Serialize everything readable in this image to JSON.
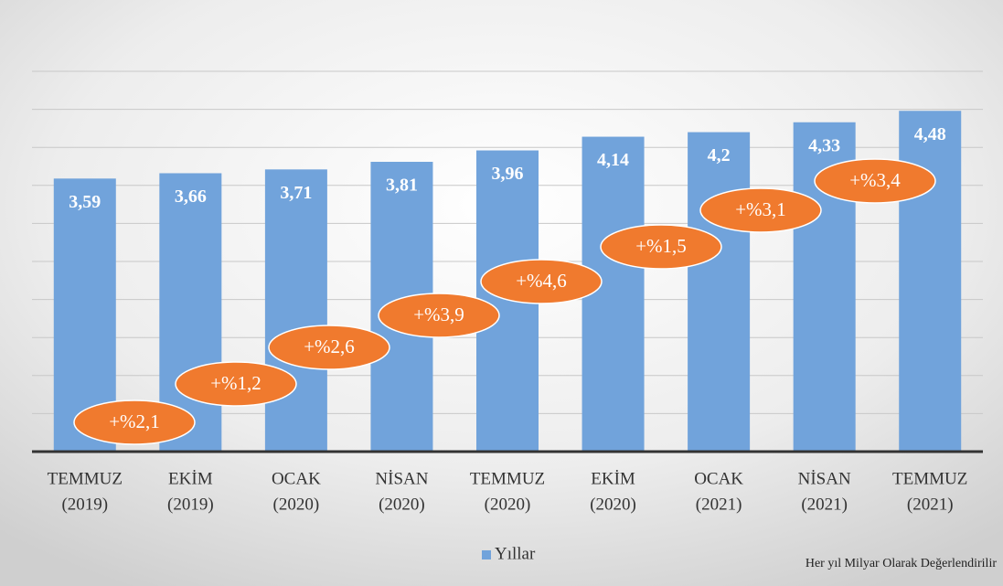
{
  "chart_data": {
    "type": "bar",
    "categories": [
      [
        "TEMMUZ",
        "(2019)"
      ],
      [
        "EKİM",
        "(2019)"
      ],
      [
        "OCAK",
        "(2020)"
      ],
      [
        "NİSAN",
        "(2020)"
      ],
      [
        "TEMMUZ",
        "(2020)"
      ],
      [
        "EKİM",
        "(2020)"
      ],
      [
        "OCAK",
        "(2021)"
      ],
      [
        "NİSAN",
        "(2021)"
      ],
      [
        "TEMMUZ",
        "(2021)"
      ]
    ],
    "series": [
      {
        "name": "Yıllar",
        "color": "#71a3db",
        "values": [
          3.59,
          3.66,
          3.71,
          3.81,
          3.96,
          4.14,
          4.2,
          4.33,
          4.48
        ],
        "value_labels": [
          "3,59",
          "3,66",
          "3,71",
          "3,81",
          "3,96",
          "4,14",
          "4,2",
          "4,33",
          "4,48"
        ]
      }
    ],
    "annotations": [
      "+%2,1",
      "+%1,2",
      "+%2,6",
      "+%3,9",
      "+%4,6",
      "+%1,5",
      "+%3,1",
      "+%3,4"
    ],
    "annotation_color": "#f07a2e",
    "ylim": [
      0,
      5
    ],
    "yticks": [
      0,
      0.5,
      1,
      1.5,
      2,
      2.5,
      3,
      3.5,
      4,
      4.5,
      5
    ],
    "grid": true,
    "legend": "bottom",
    "footnote": "Her yıl Milyar Olarak Değerlendirilir"
  }
}
